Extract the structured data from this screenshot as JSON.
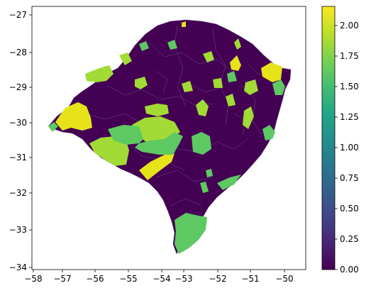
{
  "map": {
    "x_ticks": [
      "−58",
      "−57",
      "−56",
      "−55",
      "−54",
      "−53",
      "−52",
      "−51",
      "−50"
    ],
    "y_ticks": [
      "−27",
      "−28",
      "−29",
      "−30",
      "−31",
      "−32",
      "−33",
      "−34"
    ],
    "colorbar_ticks": [
      "0.00",
      "0.25",
      "0.50",
      "0.75",
      "1.00",
      "1.25",
      "1.50",
      "1.75",
      "2.00"
    ],
    "colors": {
      "base": "#440154",
      "yellow": "#e6e419",
      "lime": "#a2db35",
      "green": "#5ec962",
      "border": "#7b5a96"
    }
  }
}
